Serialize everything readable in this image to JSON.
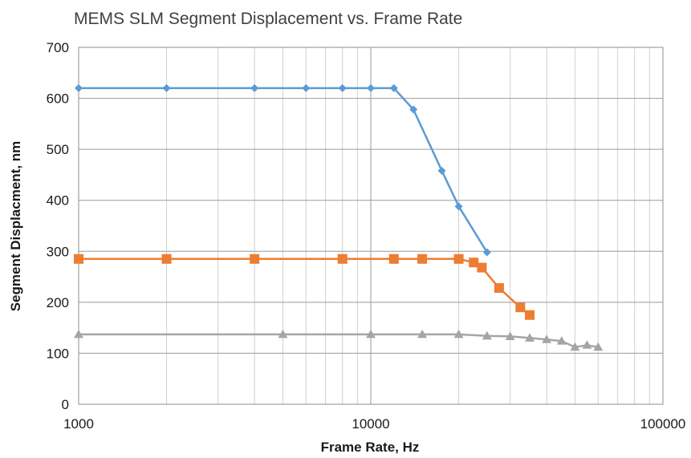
{
  "chart_data": {
    "type": "line",
    "title": "MEMS SLM Segment Displacement vs. Frame Rate",
    "xlabel": "Frame Rate, Hz",
    "ylabel": "Segment Displacment, nm",
    "x_scale": "log",
    "xlim": [
      1000,
      100000
    ],
    "ylim": [
      0,
      700
    ],
    "x_ticks": [
      1000,
      10000,
      100000
    ],
    "x_tick_labels": [
      "1000",
      "10000",
      "100000"
    ],
    "y_ticks": [
      0,
      100,
      200,
      300,
      400,
      500,
      600,
      700
    ],
    "y_tick_labels": [
      "0",
      "100",
      "200",
      "300",
      "400",
      "500",
      "600",
      "700"
    ],
    "grid": true,
    "legend": "none",
    "series": [
      {
        "color": "#5b9bd5",
        "marker": "diamond",
        "x": [
          1000,
          2000,
          4000,
          6000,
          8000,
          10000,
          12000,
          14000,
          17500,
          20000,
          25000
        ],
        "y": [
          620,
          620,
          620,
          620,
          620,
          620,
          620,
          578,
          458,
          388,
          298
        ]
      },
      {
        "color": "#ed7d31",
        "marker": "square",
        "x": [
          1000,
          2000,
          4000,
          8000,
          12000,
          15000,
          20000,
          22500,
          24000,
          27500,
          32500,
          35000
        ],
        "y": [
          285,
          285,
          285,
          285,
          285,
          285,
          285,
          278,
          268,
          228,
          190,
          175
        ]
      },
      {
        "color": "#a5a5a5",
        "marker": "triangle",
        "x": [
          1000,
          5000,
          10000,
          15000,
          20000,
          25000,
          30000,
          35000,
          40000,
          45000,
          50000,
          55000,
          60000
        ],
        "y": [
          137,
          137,
          137,
          137,
          137,
          134,
          133,
          130,
          127,
          124,
          112,
          116,
          112
        ]
      }
    ]
  }
}
